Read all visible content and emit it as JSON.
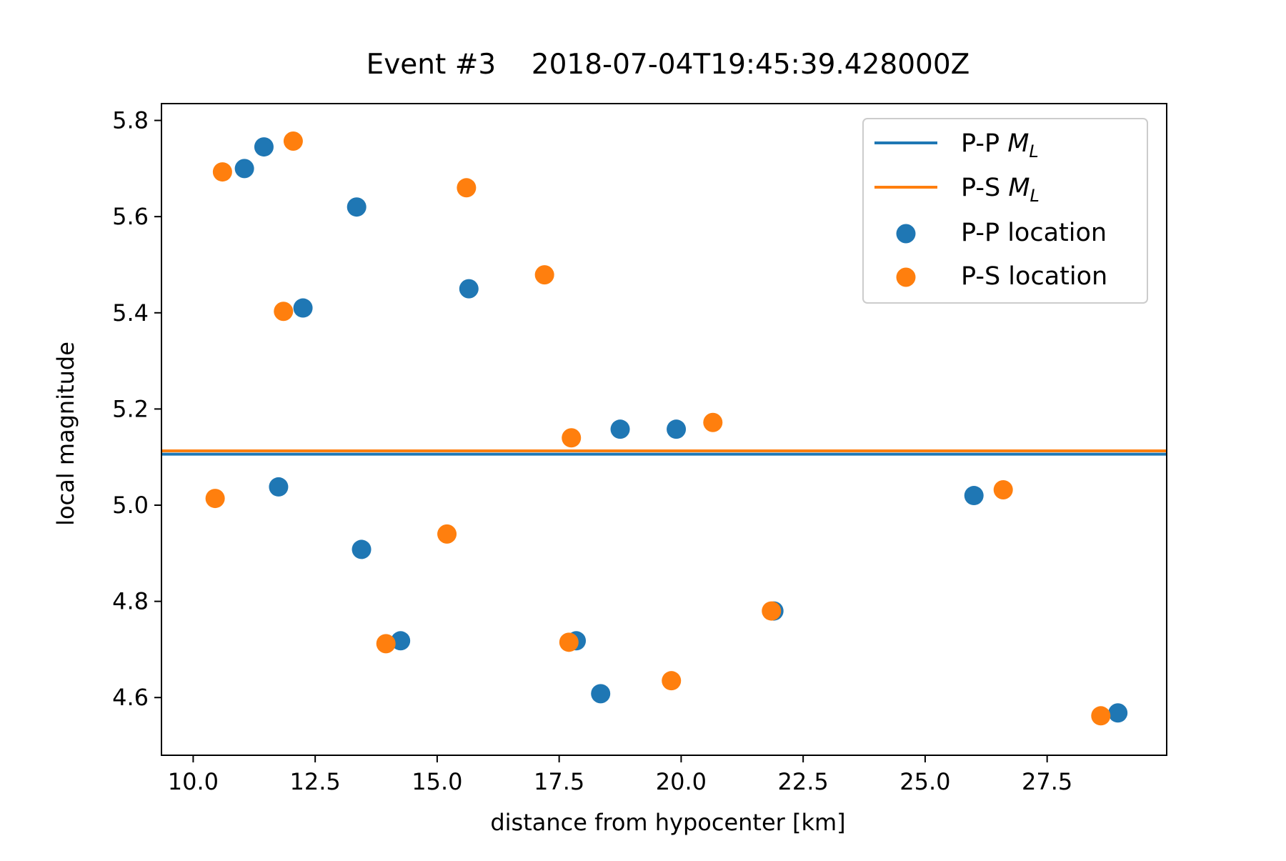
{
  "chart_data": {
    "type": "scatter",
    "title": "Event #3    2018-07-04T19:45:39.428000Z",
    "xlabel": "distance from hypocenter [km]",
    "ylabel": "local magnitude",
    "xlim": [
      9.35,
      29.95
    ],
    "ylim": [
      4.48,
      5.835
    ],
    "xticks": [
      10.0,
      12.5,
      15.0,
      17.5,
      20.0,
      22.5,
      25.0,
      27.5
    ],
    "xtick_labels": [
      "10.0",
      "12.5",
      "15.0",
      "17.5",
      "20.0",
      "22.5",
      "25.0",
      "27.5"
    ],
    "yticks": [
      4.6,
      4.8,
      5.0,
      5.2,
      5.4,
      5.6,
      5.8
    ],
    "ytick_labels": [
      "4.6",
      "4.8",
      "5.0",
      "5.2",
      "5.4",
      "5.6",
      "5.8"
    ],
    "grid": false,
    "legend_position": "top-right",
    "hlines": [
      {
        "name_prefix": "P-P ",
        "name_math": "M",
        "name_sub": "L",
        "y": 5.106,
        "color": "#1f77b4"
      },
      {
        "name_prefix": "P-S ",
        "name_math": "M",
        "name_sub": "L",
        "y": 5.113,
        "color": "#ff7f0e"
      }
    ],
    "series": [
      {
        "name": "P-P location",
        "color": "#1f77b4",
        "points": [
          [
            11.05,
            5.7
          ],
          [
            11.45,
            5.745
          ],
          [
            13.35,
            5.62
          ],
          [
            12.25,
            5.41
          ],
          [
            15.65,
            5.45
          ],
          [
            18.75,
            5.158
          ],
          [
            19.9,
            5.158
          ],
          [
            11.75,
            5.038
          ],
          [
            13.45,
            4.908
          ],
          [
            14.25,
            4.718
          ],
          [
            17.85,
            4.718
          ],
          [
            18.35,
            4.608
          ],
          [
            21.9,
            4.78
          ],
          [
            26.0,
            5.02
          ],
          [
            28.95,
            4.568
          ]
        ]
      },
      {
        "name": "P-S location",
        "color": "#ff7f0e",
        "points": [
          [
            10.6,
            5.693
          ],
          [
            12.05,
            5.757
          ],
          [
            15.6,
            5.66
          ],
          [
            11.85,
            5.403
          ],
          [
            17.2,
            5.479
          ],
          [
            17.75,
            5.14
          ],
          [
            20.65,
            5.172
          ],
          [
            10.45,
            5.014
          ],
          [
            15.2,
            4.94
          ],
          [
            13.95,
            4.712
          ],
          [
            17.7,
            4.715
          ],
          [
            19.8,
            4.635
          ],
          [
            21.85,
            4.78
          ],
          [
            26.6,
            5.032
          ],
          [
            28.6,
            4.562
          ]
        ]
      }
    ]
  }
}
